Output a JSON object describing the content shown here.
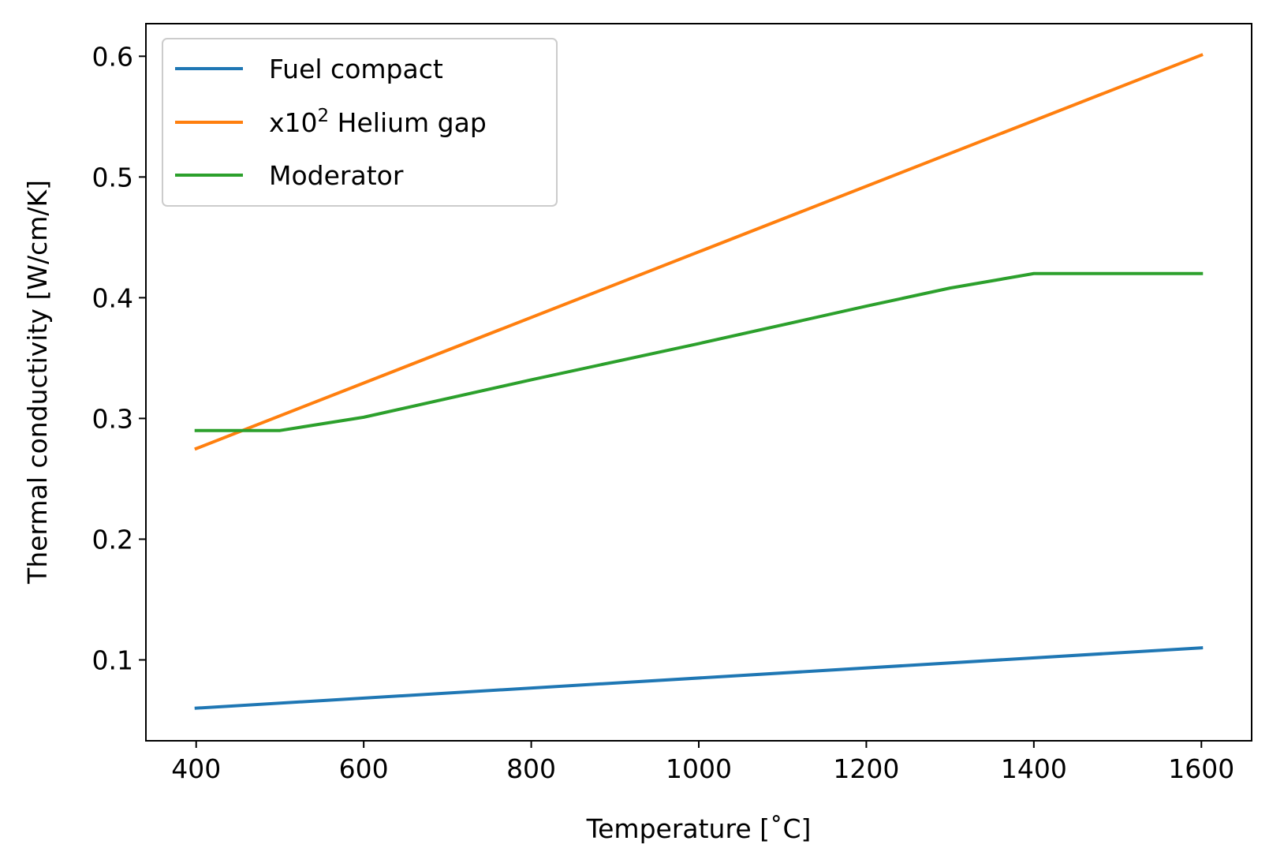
{
  "chart_data": {
    "type": "line",
    "xlabel": "Temperature [˚C]",
    "ylabel": "Thermal conductivity [W/cm/K]",
    "xlim": [
      340,
      1660
    ],
    "ylim": [
      0.033,
      0.627
    ],
    "xticks": [
      400,
      600,
      800,
      1000,
      1200,
      1400,
      1600
    ],
    "xtick_labels": [
      "400",
      "600",
      "800",
      "1000",
      "1200",
      "1400",
      "1600"
    ],
    "yticks": [
      0.1,
      0.2,
      0.3,
      0.4,
      0.5,
      0.6
    ],
    "ytick_labels": [
      "0.1",
      "0.2",
      "0.3",
      "0.4",
      "0.5",
      "0.6"
    ],
    "grid": false,
    "legend_position": "upper-left",
    "series": [
      {
        "name": "Fuel compact",
        "color": "#1f77b4",
        "x": [
          400,
          1600
        ],
        "y": [
          0.06,
          0.11
        ]
      },
      {
        "name": "x10^2 Helium gap",
        "legend_prefix": "x10",
        "legend_superscript": "2",
        "legend_suffix": " Helium gap",
        "color": "#ff7f0e",
        "x": [
          400,
          1600
        ],
        "y": [
          0.275,
          0.601
        ]
      },
      {
        "name": "Moderator",
        "color": "#2ca02c",
        "x": [
          400,
          500,
          600,
          800,
          1000,
          1200,
          1300,
          1400,
          1600
        ],
        "y": [
          0.29,
          0.29,
          0.301,
          0.332,
          0.362,
          0.393,
          0.408,
          0.42,
          0.42
        ]
      }
    ]
  }
}
